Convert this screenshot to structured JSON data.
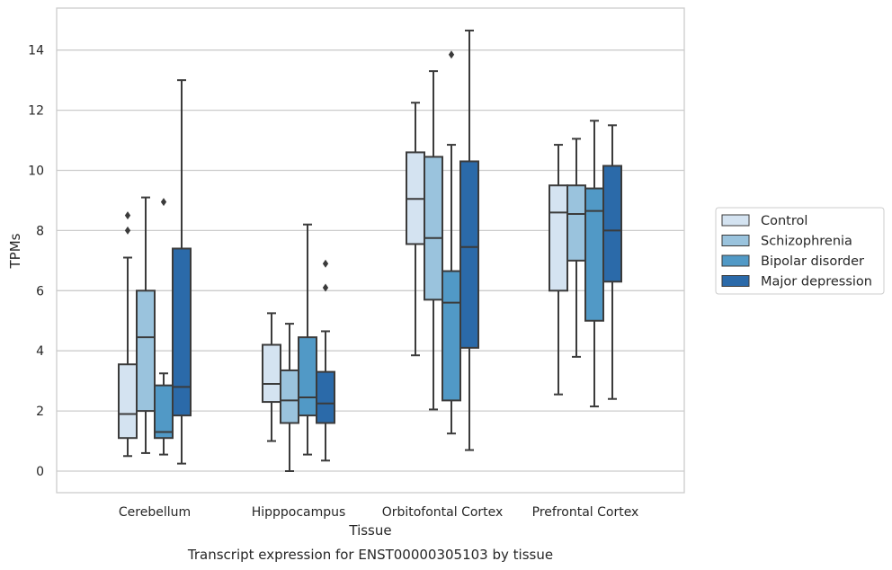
{
  "chart_data": {
    "type": "box",
    "title": "Transcript expression for ENST00000305103 by tissue",
    "xlabel": "Tissue",
    "ylabel": "TPMs",
    "ylim": [
      -0.7,
      15.4
    ],
    "yticks": [
      0,
      2,
      4,
      6,
      8,
      10,
      12,
      14
    ],
    "categories": [
      "Cerebellum",
      "Hipppocampus",
      "Orbitofontal Cortex",
      "Prefrontal Cortex"
    ],
    "legend_position": "center-right",
    "grid": "horizontal",
    "series": [
      {
        "name": "Control",
        "color": "#d4e3f1",
        "boxes": [
          {
            "whislo": 0.5,
            "q1": 1.1,
            "med": 1.9,
            "q3": 3.55,
            "whishi": 7.1,
            "fliers": [
              8.0,
              8.5
            ]
          },
          {
            "whislo": 1.0,
            "q1": 2.3,
            "med": 2.9,
            "q3": 4.2,
            "whishi": 5.25,
            "fliers": []
          },
          {
            "whislo": 3.85,
            "q1": 7.55,
            "med": 9.05,
            "q3": 10.6,
            "whishi": 12.25,
            "fliers": []
          },
          {
            "whislo": 2.55,
            "q1": 6.0,
            "med": 8.6,
            "q3": 9.5,
            "whishi": 10.85,
            "fliers": []
          }
        ]
      },
      {
        "name": "Schizophrenia",
        "color": "#9ac3dd",
        "boxes": [
          {
            "whislo": 0.6,
            "q1": 2.0,
            "med": 4.45,
            "q3": 6.0,
            "whishi": 9.1,
            "fliers": []
          },
          {
            "whislo": 0.0,
            "q1": 1.6,
            "med": 2.35,
            "q3": 3.35,
            "whishi": 4.9,
            "fliers": []
          },
          {
            "whislo": 2.05,
            "q1": 5.7,
            "med": 7.75,
            "q3": 10.45,
            "whishi": 13.3,
            "fliers": []
          },
          {
            "whislo": 3.8,
            "q1": 7.0,
            "med": 8.55,
            "q3": 9.5,
            "whishi": 11.05,
            "fliers": []
          }
        ]
      },
      {
        "name": "Bipolar disorder",
        "color": "#5199c6",
        "boxes": [
          {
            "whislo": 0.55,
            "q1": 1.1,
            "med": 1.3,
            "q3": 2.85,
            "whishi": 3.25,
            "fliers": [
              8.95
            ]
          },
          {
            "whislo": 0.55,
            "q1": 1.85,
            "med": 2.45,
            "q3": 4.45,
            "whishi": 8.2,
            "fliers": []
          },
          {
            "whislo": 1.25,
            "q1": 2.35,
            "med": 5.6,
            "q3": 6.65,
            "whishi": 10.85,
            "fliers": [
              13.85
            ]
          },
          {
            "whislo": 2.15,
            "q1": 5.0,
            "med": 8.65,
            "q3": 9.4,
            "whishi": 11.65,
            "fliers": []
          }
        ]
      },
      {
        "name": "Major depression",
        "color": "#2b6aa9",
        "boxes": [
          {
            "whislo": 0.25,
            "q1": 1.85,
            "med": 2.8,
            "q3": 7.4,
            "whishi": 13.0,
            "fliers": []
          },
          {
            "whislo": 0.35,
            "q1": 1.6,
            "med": 2.25,
            "q3": 3.3,
            "whishi": 4.65,
            "fliers": [
              6.1,
              6.9
            ]
          },
          {
            "whislo": 0.7,
            "q1": 4.1,
            "med": 7.45,
            "q3": 10.3,
            "whishi": 14.65,
            "fliers": []
          },
          {
            "whislo": 2.4,
            "q1": 6.3,
            "med": 8.0,
            "q3": 10.15,
            "whishi": 11.5,
            "fliers": []
          }
        ]
      }
    ]
  }
}
